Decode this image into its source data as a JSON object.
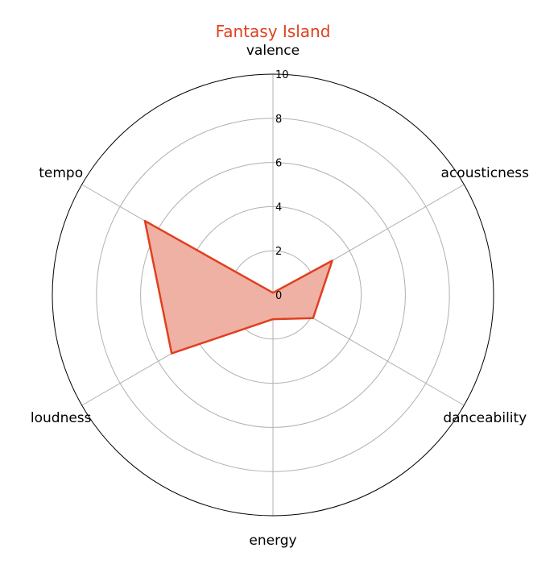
{
  "chart_data": {
    "type": "radar",
    "title": "Fantasy Island",
    "axes": [
      "valence",
      "acousticness",
      "danceability",
      "energy",
      "loudness",
      "tempo"
    ],
    "series": [
      {
        "values": [
          0.1,
          3.1,
          2.1,
          1.1,
          5.3,
          6.7
        ]
      }
    ],
    "rlim": [
      0,
      10
    ],
    "rticks": [
      "0",
      "2",
      "4",
      "6",
      "8",
      "10"
    ],
    "grid": true,
    "colors": {
      "line": "#e0401f",
      "fill": "#efb1a4",
      "title": "#e0401f",
      "grid": "#b0b0b0",
      "frame": "#000000"
    }
  }
}
